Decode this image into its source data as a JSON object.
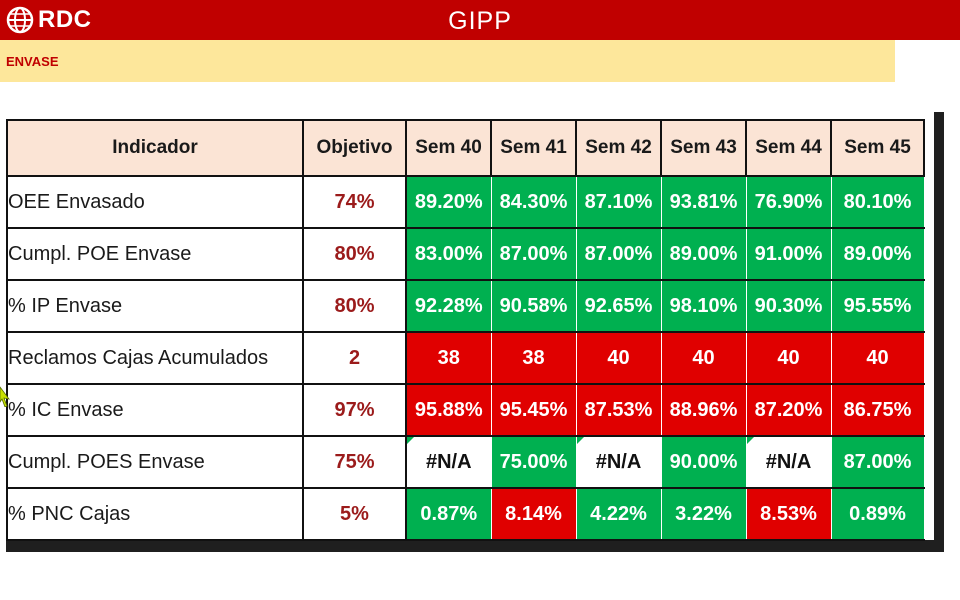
{
  "header": {
    "logo_text": "RDC",
    "title": "GIPP",
    "logo_icon": "globe-icon"
  },
  "section": {
    "label": "ENVASE"
  },
  "table": {
    "columns": [
      "Indicador",
      "Objetivo",
      "Sem 40",
      "Sem 41",
      "Sem 42",
      "Sem 43",
      "Sem 44",
      "Sem 45"
    ],
    "rows": [
      {
        "name": "OEE Envasado",
        "target": "74%",
        "values": [
          "89.20%",
          "84.30%",
          "87.10%",
          "93.81%",
          "76.90%",
          "80.10%"
        ],
        "status": [
          "green",
          "green",
          "green",
          "green",
          "green",
          "green"
        ]
      },
      {
        "name": "Cumpl. POE Envase",
        "target": "80%",
        "values": [
          "83.00%",
          "87.00%",
          "87.00%",
          "89.00%",
          "91.00%",
          "89.00%"
        ],
        "status": [
          "green",
          "green",
          "green",
          "green",
          "green",
          "green"
        ]
      },
      {
        "name": "% IP Envase",
        "target": "80%",
        "values": [
          "92.28%",
          "90.58%",
          "92.65%",
          "98.10%",
          "90.30%",
          "95.55%"
        ],
        "status": [
          "green",
          "green",
          "green",
          "green",
          "green",
          "green"
        ]
      },
      {
        "name": "Reclamos Cajas Acumulados",
        "target": "2",
        "values": [
          "38",
          "38",
          "40",
          "40",
          "40",
          "40"
        ],
        "status": [
          "red",
          "red",
          "red",
          "red",
          "red",
          "red"
        ]
      },
      {
        "name": "% IC Envase",
        "target": "97%",
        "values": [
          "95.88%",
          "95.45%",
          "87.53%",
          "88.96%",
          "87.20%",
          "86.75%"
        ],
        "status": [
          "red",
          "red",
          "red",
          "red",
          "red",
          "red"
        ]
      },
      {
        "name": "Cumpl. POES Envase",
        "target": "75%",
        "values": [
          "#N/A",
          "75.00%",
          "#N/A",
          "90.00%",
          "#N/A",
          "87.00%"
        ],
        "status": [
          "white",
          "green",
          "white",
          "green",
          "white",
          "green"
        ]
      },
      {
        "name": "% PNC Cajas",
        "target": "5%",
        "values": [
          "0.87%",
          "8.14%",
          "4.22%",
          "3.22%",
          "8.53%",
          "0.89%"
        ],
        "status": [
          "green",
          "red",
          "green",
          "green",
          "red",
          "green"
        ]
      }
    ]
  },
  "colors": {
    "brand_red": "#c00000",
    "section_bg": "#fde79b",
    "header_bg": "#fbe4d5",
    "ok_green": "#00b050",
    "bad_red": "#e00000",
    "target_text": "#9b1b1b"
  }
}
